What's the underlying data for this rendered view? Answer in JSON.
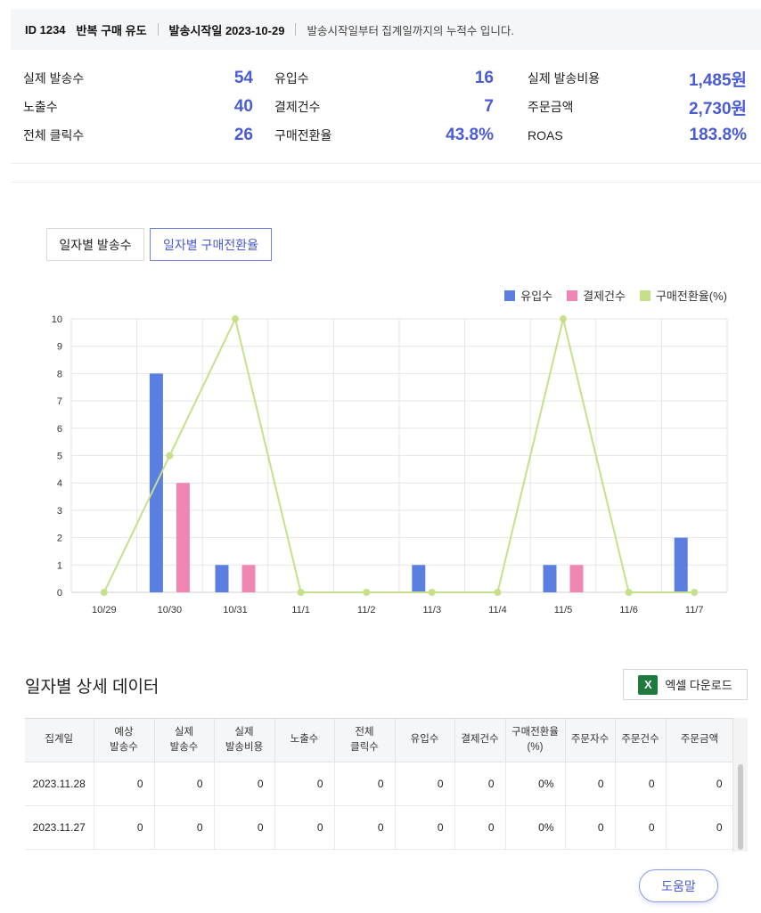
{
  "header": {
    "id_label": "ID 1234",
    "campaign_name": "반복 구매 유도",
    "start_label": "발송시작일 2023-10-29",
    "note": "발송시작일부터 집계일까지의 누적수 입니다."
  },
  "stats": [
    [
      {
        "label": "실제 발송수",
        "value": "54"
      },
      {
        "label": "노출수",
        "value": "40"
      },
      {
        "label": "전체 클릭수",
        "value": "26"
      }
    ],
    [
      {
        "label": "유입수",
        "value": "16"
      },
      {
        "label": "결제건수",
        "value": "7"
      },
      {
        "label": "구매전환율",
        "value": "43.8%"
      }
    ],
    [
      {
        "label": "실제 발송비용",
        "value": "1,485원"
      },
      {
        "label": "주문금액",
        "value": "2,730원"
      },
      {
        "label": "ROAS",
        "value": "183.8%"
      }
    ]
  ],
  "tabs": {
    "daily_sends": "일자별 발송수",
    "daily_conversion": "일자별 구매전환율"
  },
  "colors": {
    "accent": "#4a5bd6",
    "inflow": "#5b7fe0",
    "payments": "#ef86b4",
    "conversion": "#c6e08a"
  },
  "chart_data": {
    "type": "bar",
    "categories": [
      "10/29",
      "10/30",
      "10/31",
      "11/1",
      "11/2",
      "11/3",
      "11/4",
      "11/5",
      "11/6",
      "11/7"
    ],
    "series": [
      {
        "name": "유입수",
        "type": "bar",
        "values": [
          0,
          8,
          1,
          0,
          0,
          1,
          0,
          1,
          0,
          2
        ]
      },
      {
        "name": "결제건수",
        "type": "bar",
        "values": [
          0,
          4,
          1,
          0,
          0,
          0,
          0,
          1,
          0,
          0
        ]
      },
      {
        "name": "구매전환율(%)",
        "type": "line",
        "values": [
          0,
          5,
          10,
          0,
          0,
          0,
          0,
          10,
          0,
          0
        ]
      }
    ],
    "title": "",
    "xlabel": "",
    "ylabel": "",
    "ylim": [
      0,
      10
    ],
    "yticks": [
      0,
      1,
      2,
      3,
      4,
      5,
      6,
      7,
      8,
      9,
      10
    ],
    "grid": true,
    "legend_position": "top-right"
  },
  "detail": {
    "title": "일자별 상세 데이터",
    "excel_button": "엑셀 다운로드",
    "excel_icon_glyph": "X",
    "columns": [
      [
        "집계일"
      ],
      [
        "예상",
        "발송수"
      ],
      [
        "실제",
        "발송수"
      ],
      [
        "실제",
        "발송비용"
      ],
      [
        "노출수"
      ],
      [
        "전체",
        "클릭수"
      ],
      [
        "유입수"
      ],
      [
        "결제건수"
      ],
      [
        "구매전환율",
        "(%)"
      ],
      [
        "주문자수"
      ],
      [
        "주문건수"
      ],
      [
        "주문금액"
      ]
    ],
    "rows": [
      [
        "2023.11.28",
        "0",
        "0",
        "0",
        "0",
        "0",
        "0",
        "0",
        "0%",
        "0",
        "0",
        "0"
      ],
      [
        "2023.11.27",
        "0",
        "0",
        "0",
        "0",
        "0",
        "0",
        "0",
        "0%",
        "0",
        "0",
        "0"
      ]
    ]
  },
  "help_button": "도움말"
}
